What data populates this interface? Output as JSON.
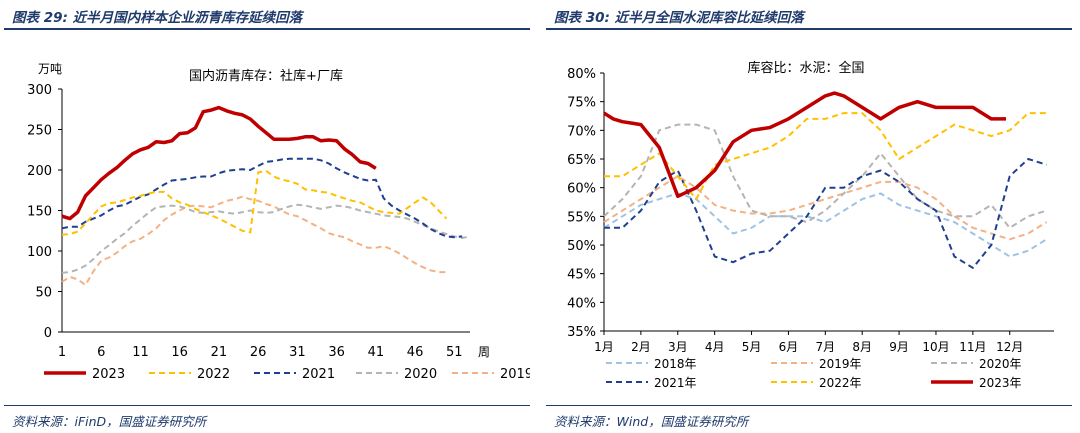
{
  "left": {
    "figure_title": "图表 29:  近半月国内样本企业沥青库存延续回落",
    "source": "资料来源：iFinD，国盛证券研究所"
  },
  "right": {
    "figure_title": "图表 30:  近半月全国水泥库容比延续回落",
    "source": "资料来源：Wind，国盛证券研究所"
  },
  "chart_data": [
    {
      "type": "line",
      "title": "国内沥青库存：社库+厂库",
      "ylabel": "万吨",
      "xlabel": "周",
      "ylim": [
        0,
        300
      ],
      "yticks": [
        0,
        50,
        100,
        150,
        200,
        250,
        300
      ],
      "xlim": [
        1,
        53
      ],
      "xticks": [
        1,
        6,
        11,
        16,
        21,
        26,
        31,
        36,
        41,
        46,
        51
      ],
      "grid": false,
      "legend": "bottom",
      "series": [
        {
          "name": "2023",
          "color": "#c00000",
          "dash": "solid",
          "width": 3.5,
          "x": [
            1,
            2,
            3,
            4,
            5,
            6,
            7,
            8,
            9,
            10,
            11,
            12,
            13,
            14,
            15,
            16,
            17,
            18,
            19,
            20,
            21,
            22,
            23,
            24,
            25,
            26,
            27,
            28,
            29,
            30,
            31,
            32,
            33,
            34,
            35,
            36,
            37,
            38,
            39,
            40,
            41
          ],
          "values": [
            143,
            140,
            148,
            168,
            178,
            188,
            196,
            203,
            212,
            220,
            225,
            228,
            235,
            234,
            236,
            245,
            246,
            252,
            272,
            274,
            277,
            273,
            270,
            268,
            263,
            254,
            246,
            238,
            238,
            238,
            239,
            241,
            241,
            236,
            237,
            236,
            226,
            219,
            210,
            208,
            202
          ]
        },
        {
          "name": "2022",
          "color": "#ffc000",
          "dash": "6,4",
          "width": 2,
          "x": [
            1,
            2,
            3,
            4,
            5,
            6,
            7,
            8,
            9,
            10,
            11,
            12,
            13,
            14,
            15,
            16,
            17,
            18,
            19,
            20,
            21,
            22,
            23,
            24,
            25,
            26,
            27,
            28,
            29,
            30,
            31,
            32,
            33,
            34,
            35,
            36,
            37,
            38,
            39,
            40,
            41,
            42,
            43,
            44,
            45,
            46,
            47,
            48,
            49,
            50
          ],
          "values": [
            120,
            121,
            124,
            134,
            145,
            155,
            159,
            160,
            163,
            166,
            168,
            171,
            173,
            173,
            165,
            160,
            157,
            152,
            148,
            144,
            140,
            135,
            130,
            125,
            123,
            197,
            199,
            192,
            188,
            186,
            183,
            176,
            175,
            173,
            172,
            168,
            165,
            162,
            160,
            155,
            150,
            148,
            147,
            146,
            153,
            160,
            166,
            160,
            150,
            140
          ]
        },
        {
          "name": "2021",
          "color": "#1f3f8f",
          "dash": "6,4",
          "width": 2,
          "x": [
            1,
            2,
            3,
            4,
            5,
            6,
            7,
            8,
            9,
            10,
            11,
            12,
            13,
            14,
            15,
            16,
            17,
            18,
            19,
            20,
            21,
            22,
            23,
            24,
            25,
            26,
            27,
            28,
            29,
            30,
            31,
            32,
            33,
            34,
            35,
            36,
            37,
            38,
            39,
            40,
            41,
            42,
            43,
            44,
            45,
            46,
            47,
            48,
            49,
            50,
            51,
            52
          ],
          "values": [
            128,
            130,
            130,
            136,
            140,
            144,
            150,
            155,
            157,
            162,
            167,
            170,
            176,
            182,
            187,
            188,
            189,
            191,
            192,
            192,
            196,
            199,
            200,
            201,
            200,
            205,
            210,
            211,
            213,
            214,
            214,
            214,
            214,
            212,
            208,
            202,
            197,
            193,
            189,
            187,
            188,
            165,
            156,
            150,
            145,
            140,
            134,
            127,
            122,
            118,
            117,
            118
          ]
        },
        {
          "name": "2020",
          "color": "#b4b4b4",
          "dash": "6,4",
          "width": 2,
          "x": [
            1,
            2,
            3,
            4,
            5,
            6,
            7,
            8,
            9,
            10,
            11,
            12,
            13,
            14,
            15,
            16,
            17,
            18,
            19,
            20,
            21,
            22,
            23,
            24,
            25,
            26,
            27,
            28,
            29,
            30,
            31,
            32,
            33,
            34,
            35,
            36,
            37,
            38,
            39,
            40,
            41,
            42,
            43,
            44,
            45,
            46,
            47,
            48,
            49,
            50,
            51,
            52,
            53
          ],
          "values": [
            73,
            74,
            77,
            82,
            90,
            100,
            107,
            115,
            122,
            131,
            139,
            147,
            154,
            155,
            156,
            155,
            152,
            148,
            147,
            148,
            149,
            147,
            146,
            148,
            150,
            148,
            147,
            148,
            152,
            155,
            157,
            156,
            154,
            152,
            154,
            156,
            155,
            153,
            150,
            148,
            146,
            144,
            143,
            142,
            140,
            136,
            132,
            128,
            124,
            121,
            118,
            116,
            118
          ]
        },
        {
          "name": "2019",
          "color": "#f4b183",
          "dash": "6,4",
          "width": 2,
          "x": [
            1,
            2,
            3,
            4,
            5,
            6,
            7,
            8,
            9,
            10,
            11,
            12,
            13,
            14,
            15,
            16,
            17,
            18,
            19,
            20,
            21,
            22,
            23,
            24,
            25,
            26,
            27,
            28,
            29,
            30,
            31,
            32,
            33,
            34,
            35,
            36,
            37,
            38,
            39,
            40,
            41,
            42,
            43,
            44,
            45,
            46,
            47,
            48,
            49,
            50
          ],
          "values": [
            62,
            68,
            65,
            58,
            75,
            88,
            92,
            98,
            106,
            112,
            115,
            121,
            128,
            138,
            145,
            150,
            155,
            156,
            155,
            154,
            158,
            162,
            164,
            167,
            164,
            162,
            158,
            155,
            150,
            145,
            143,
            138,
            133,
            128,
            122,
            119,
            117,
            112,
            108,
            104,
            104,
            106,
            102,
            97,
            91,
            85,
            80,
            76,
            74,
            74
          ]
        }
      ]
    },
    {
      "type": "line",
      "title": "库容比：水泥：全国",
      "ylim": [
        35,
        80
      ],
      "yticks": [
        "35%",
        "40%",
        "45%",
        "50%",
        "55%",
        "60%",
        "65%",
        "70%",
        "75%",
        "80%"
      ],
      "xlim": [
        0,
        12.2
      ],
      "categories": [
        "1月",
        "2月",
        "3月",
        "4月",
        "5月",
        "6月",
        "7月",
        "8月",
        "9月",
        "10月",
        "11月",
        "12月"
      ],
      "grid": false,
      "legend": "bottom",
      "series": [
        {
          "name": "2018年",
          "color": "#9dc3e6",
          "dash": "6,4",
          "width": 2,
          "x": [
            0,
            0.5,
            1,
            1.5,
            2,
            2.5,
            3,
            3.5,
            4,
            4.5,
            5,
            5.5,
            6,
            6.5,
            7,
            7.5,
            8,
            8.5,
            9,
            9.5,
            10,
            10.5,
            11,
            11.5,
            12
          ],
          "values": [
            53,
            55,
            57,
            58,
            59,
            58,
            55,
            52,
            53,
            55,
            55,
            55,
            54,
            56,
            58,
            59,
            57,
            56,
            55,
            54,
            52,
            50,
            48,
            49,
            51
          ]
        },
        {
          "name": "2019年",
          "color": "#f4b183",
          "dash": "6,4",
          "width": 2,
          "x": [
            0,
            0.5,
            1,
            1.5,
            2,
            2.5,
            3,
            3.5,
            4,
            4.5,
            5,
            5.5,
            6,
            6.5,
            7,
            7.5,
            8,
            8.5,
            9,
            9.5,
            10,
            10.5,
            11,
            11.5,
            12
          ],
          "values": [
            54,
            56,
            58,
            60,
            62,
            60,
            57,
            56,
            55.5,
            55.5,
            56,
            57,
            58,
            59,
            60,
            61,
            61,
            60,
            58,
            55,
            53,
            52,
            51,
            52,
            54
          ]
        },
        {
          "name": "2020年",
          "color": "#b4b4b4",
          "dash": "6,4",
          "width": 2,
          "x": [
            0,
            0.5,
            1,
            1.5,
            2,
            2.5,
            3,
            3.5,
            4,
            4.5,
            5,
            5.5,
            6,
            6.5,
            7,
            7.5,
            8,
            8.5,
            9,
            9.5,
            10,
            10.5,
            11,
            11.5,
            12
          ],
          "values": [
            55,
            58,
            62,
            70,
            71,
            71,
            70,
            62,
            56,
            55,
            55,
            54,
            56,
            59,
            62,
            66,
            62,
            58,
            56,
            55,
            55,
            57,
            53,
            55,
            56
          ]
        },
        {
          "name": "2021年",
          "color": "#1f3f8f",
          "dash": "6,4",
          "width": 2,
          "x": [
            0,
            0.5,
            1,
            1.5,
            2,
            2.5,
            3,
            3.5,
            4,
            4.5,
            5,
            5.5,
            6,
            6.5,
            7,
            7.5,
            8,
            8.5,
            9,
            9.5,
            10,
            10.5,
            11,
            11.5,
            12
          ],
          "values": [
            53,
            53,
            56,
            61,
            63,
            56,
            48,
            47,
            48.5,
            49,
            52,
            55,
            60,
            60,
            62,
            63,
            61,
            58,
            56,
            48,
            46,
            50,
            62,
            65,
            64
          ]
        },
        {
          "name": "2022年",
          "color": "#ffc000",
          "dash": "6,4",
          "width": 2,
          "x": [
            0,
            0.5,
            1,
            1.5,
            2,
            2.5,
            3,
            3.5,
            4,
            4.5,
            5,
            5.5,
            6,
            6.5,
            7,
            7.5,
            8,
            8.5,
            9,
            9.5,
            10,
            10.5,
            11,
            11.5,
            12
          ],
          "values": [
            62,
            62,
            64,
            66,
            62,
            58,
            64,
            65,
            66,
            67,
            69,
            72,
            72,
            73,
            73,
            70,
            65,
            67,
            69,
            71,
            70,
            69,
            70,
            73,
            73
          ]
        },
        {
          "name": "2023年",
          "color": "#c00000",
          "dash": "solid",
          "width": 3.5,
          "x": [
            0,
            0.25,
            0.5,
            1,
            1.5,
            2,
            2.5,
            3,
            3.5,
            4,
            4.5,
            5,
            5.5,
            6,
            6.25,
            6.5,
            7,
            7.5,
            8,
            8.5,
            9,
            9.5,
            10,
            10.5,
            10.9
          ],
          "values": [
            73,
            72,
            71.5,
            71,
            67,
            58.5,
            60,
            63,
            68,
            70,
            70.5,
            72,
            74,
            76,
            76.5,
            76,
            74,
            72,
            74,
            75,
            74,
            74,
            74,
            72,
            72
          ]
        }
      ]
    }
  ]
}
